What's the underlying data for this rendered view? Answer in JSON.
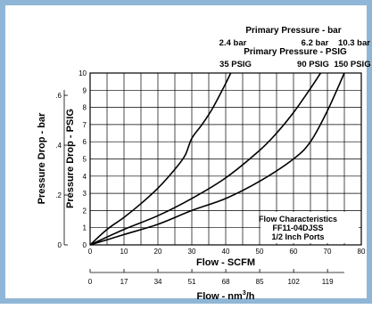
{
  "chart_data": {
    "type": "line",
    "annotation": [
      "Flow Characteristics",
      "FF11-04DJSS",
      "1/2 Inch Ports"
    ],
    "top_axis": {
      "bar_label": "Primary Pressure - bar",
      "bar_values": [
        "2.4 bar",
        "6.2 bar",
        "10.3 bar"
      ],
      "psig_label": "Primary Pressure - PSIG",
      "psig_values": [
        "35 PSIG",
        "90 PSIG",
        "150 PSIG"
      ]
    },
    "x_primary": {
      "label": "Flow - SCFM",
      "ticks": [
        "0",
        "10",
        "20",
        "30",
        "40",
        "50",
        "60",
        "70",
        "80"
      ],
      "range": [
        0,
        80
      ]
    },
    "x_secondary": {
      "label_main": "Flow - nm",
      "label_sup": "3",
      "label_tail": "/h",
      "ticks": [
        "0",
        "17",
        "34",
        "51",
        "68",
        "85",
        "102",
        "119"
      ]
    },
    "y_primary": {
      "label": "Pressure Drop - PSIG",
      "ticks": [
        "0",
        "1",
        "2",
        "3",
        "4",
        "5",
        "6",
        "7",
        "8",
        "9",
        "10"
      ],
      "range": [
        0,
        10
      ]
    },
    "y_secondary": {
      "label": "Pressure Drop - bar",
      "ticks": [
        "0",
        ".2",
        ".4",
        ".6"
      ]
    },
    "grid": true,
    "series": [
      {
        "name": "35 PSIG",
        "x": [
          0,
          5,
          10,
          15,
          20,
          25,
          28,
          30,
          33,
          36,
          39.5,
          41.5
        ],
        "y": [
          0,
          0.9,
          1.6,
          2.4,
          3.3,
          4.4,
          5.2,
          6.2,
          7.0,
          7.9,
          9.2,
          10
        ]
      },
      {
        "name": "90 PSIG",
        "x": [
          0,
          10,
          20,
          30,
          40,
          50,
          55,
          60,
          65,
          68
        ],
        "y": [
          0,
          0.9,
          1.7,
          2.7,
          3.9,
          5.5,
          6.5,
          7.7,
          9.1,
          10
        ]
      },
      {
        "name": "150 PSIG",
        "x": [
          0,
          10,
          20,
          30,
          40,
          50,
          60,
          65,
          70,
          75
        ],
        "y": [
          0,
          0.6,
          1.2,
          2.0,
          2.7,
          3.7,
          5.0,
          6.0,
          7.8,
          10
        ]
      }
    ]
  }
}
